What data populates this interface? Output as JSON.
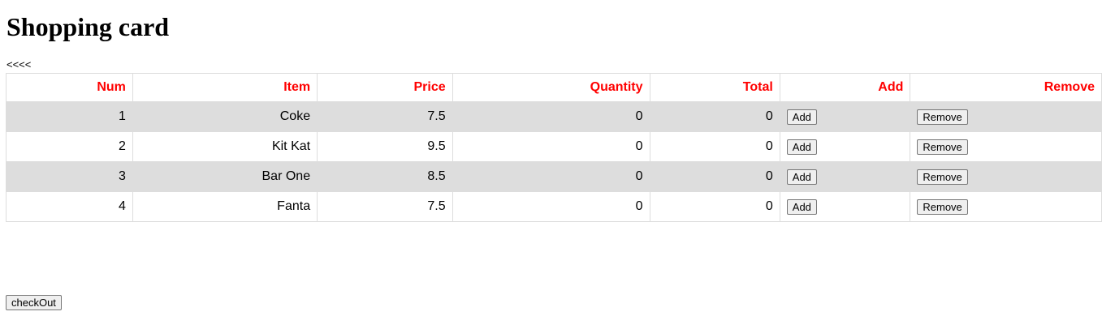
{
  "page": {
    "title": "Shopping card",
    "back_link": "<<<<"
  },
  "table": {
    "headers": [
      "Num",
      "Item",
      "Price",
      "Quantity",
      "Total",
      "Add",
      "Remove"
    ],
    "rows": [
      {
        "num": "1",
        "item": "Coke",
        "price": "7.5",
        "quantity": "0",
        "total": "0",
        "add": "Add",
        "remove": "Remove"
      },
      {
        "num": "2",
        "item": "Kit Kat",
        "price": "9.5",
        "quantity": "0",
        "total": "0",
        "add": "Add",
        "remove": "Remove"
      },
      {
        "num": "3",
        "item": "Bar One",
        "price": "8.5",
        "quantity": "0",
        "total": "0",
        "add": "Add",
        "remove": "Remove"
      },
      {
        "num": "4",
        "item": "Fanta",
        "price": "7.5",
        "quantity": "0",
        "total": "0",
        "add": "Add",
        "remove": "Remove"
      }
    ]
  },
  "footer": {
    "checkout_label": "checkOut"
  },
  "colors": {
    "header_text": "#ff0000",
    "stripe": "#dddddd"
  }
}
